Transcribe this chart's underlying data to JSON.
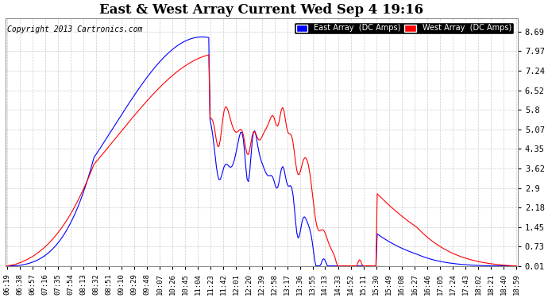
{
  "title": "East & West Array Current Wed Sep 4 19:16",
  "copyright": "Copyright 2013 Cartronics.com",
  "legend_east": "East Array  (DC Amps)",
  "legend_west": "West Array  (DC Amps)",
  "east_color": "#0000ff",
  "west_color": "#ff0000",
  "background_color": "#ffffff",
  "grid_color": "#cccccc",
  "yticks": [
    0.01,
    0.73,
    1.45,
    2.18,
    2.9,
    3.62,
    4.35,
    5.07,
    5.8,
    6.52,
    7.24,
    7.97,
    8.69
  ],
  "ylim": [
    0.0,
    9.2
  ],
  "xtick_labels": [
    "06:19",
    "06:38",
    "06:57",
    "07:16",
    "07:35",
    "07:54",
    "08:13",
    "08:32",
    "08:51",
    "09:10",
    "09:29",
    "09:48",
    "10:07",
    "10:26",
    "10:45",
    "11:04",
    "11:23",
    "11:42",
    "12:01",
    "12:20",
    "12:39",
    "12:58",
    "13:17",
    "13:36",
    "13:55",
    "14:13",
    "14:33",
    "14:52",
    "15:11",
    "15:30",
    "15:49",
    "16:08",
    "16:27",
    "16:46",
    "17:05",
    "17:24",
    "17:43",
    "18:02",
    "18:21",
    "18:40",
    "18:59"
  ],
  "figsize": [
    6.9,
    3.75
  ],
  "dpi": 100
}
